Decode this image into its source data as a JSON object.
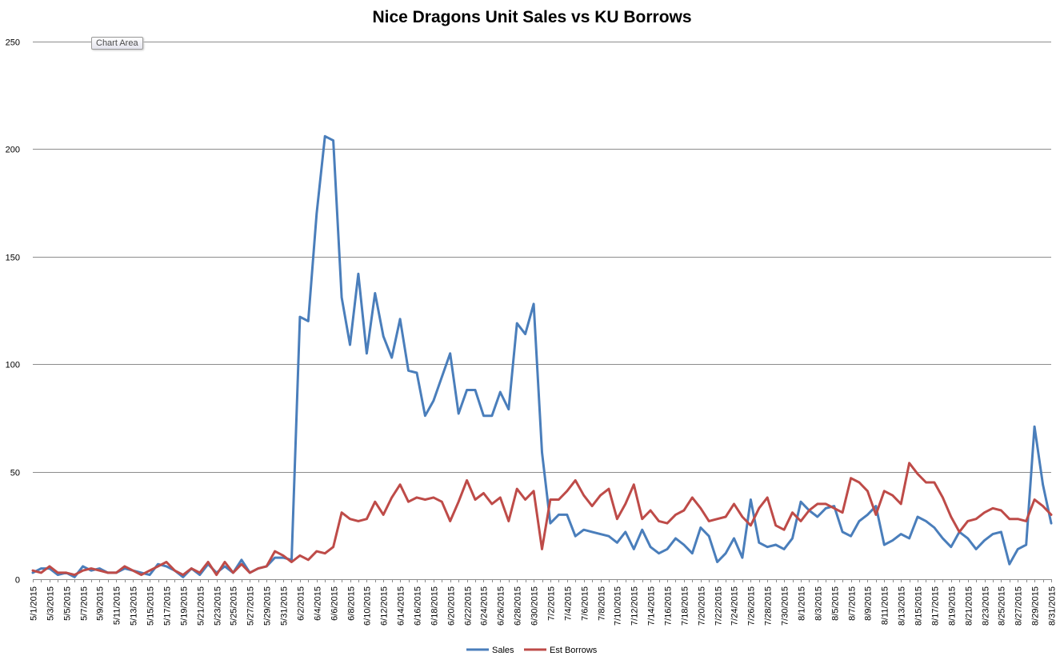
{
  "chart_data": {
    "type": "line",
    "title": "Nice Dragons Unit Sales vs KU Borrows",
    "tooltip": "Chart Area",
    "ylim": [
      0,
      250
    ],
    "yticks": [
      0,
      50,
      100,
      150,
      200,
      250
    ],
    "grid": true,
    "legend_position": "bottom",
    "xlabel": "",
    "ylabel": "",
    "x": [
      "5/1/2015",
      "5/2/2015",
      "5/3/2015",
      "5/4/2015",
      "5/5/2015",
      "5/6/2015",
      "5/7/2015",
      "5/8/2015",
      "5/9/2015",
      "5/10/2015",
      "5/11/2015",
      "5/12/2015",
      "5/13/2015",
      "5/14/2015",
      "5/15/2015",
      "5/16/2015",
      "5/17/2015",
      "5/18/2015",
      "5/19/2015",
      "5/20/2015",
      "5/21/2015",
      "5/22/2015",
      "5/23/2015",
      "5/24/2015",
      "5/25/2015",
      "5/26/2015",
      "5/27/2015",
      "5/28/2015",
      "5/29/2015",
      "5/30/2015",
      "5/31/2015",
      "6/1/2015",
      "6/2/2015",
      "6/3/2015",
      "6/4/2015",
      "6/5/2015",
      "6/6/2015",
      "6/7/2015",
      "6/8/2015",
      "6/9/2015",
      "6/10/2015",
      "6/11/2015",
      "6/12/2015",
      "6/13/2015",
      "6/14/2015",
      "6/15/2015",
      "6/16/2015",
      "6/17/2015",
      "6/18/2015",
      "6/19/2015",
      "6/20/2015",
      "6/21/2015",
      "6/22/2015",
      "6/23/2015",
      "6/24/2015",
      "6/25/2015",
      "6/26/2015",
      "6/27/2015",
      "6/28/2015",
      "6/29/2015",
      "6/30/2015",
      "7/1/2015",
      "7/2/2015",
      "7/3/2015",
      "7/4/2015",
      "7/5/2015",
      "7/6/2015",
      "7/7/2015",
      "7/8/2015",
      "7/9/2015",
      "7/10/2015",
      "7/11/2015",
      "7/12/2015",
      "7/13/2015",
      "7/14/2015",
      "7/15/2015",
      "7/16/2015",
      "7/17/2015",
      "7/18/2015",
      "7/19/2015",
      "7/20/2015",
      "7/21/2015",
      "7/22/2015",
      "7/23/2015",
      "7/24/2015",
      "7/25/2015",
      "7/26/2015",
      "7/27/2015",
      "7/28/2015",
      "7/29/2015",
      "7/30/2015",
      "7/31/2015",
      "8/1/2015",
      "8/2/2015",
      "8/3/2015",
      "8/4/2015",
      "8/5/2015",
      "8/6/2015",
      "8/7/2015",
      "8/8/2015",
      "8/9/2015",
      "8/10/2015",
      "8/11/2015",
      "8/12/2015",
      "8/13/2015",
      "8/14/2015",
      "8/15/2015",
      "8/16/2015",
      "8/17/2015",
      "8/18/2015",
      "8/19/2015",
      "8/20/2015",
      "8/21/2015",
      "8/22/2015",
      "8/23/2015",
      "8/24/2015",
      "8/25/2015",
      "8/26/2015",
      "8/27/2015",
      "8/28/2015",
      "8/29/2015",
      "8/30/2015",
      "8/31/2015"
    ],
    "series": [
      {
        "name": "Sales",
        "color": "#4a7ebb",
        "values": [
          3,
          5,
          5,
          2,
          3,
          1,
          6,
          4,
          5,
          3,
          3,
          5,
          4,
          3,
          2,
          7,
          6,
          4,
          1,
          5,
          2,
          7,
          3,
          6,
          3,
          9,
          3,
          5,
          6,
          10,
          10,
          9,
          122,
          120,
          170,
          206,
          204,
          131,
          109,
          142,
          105,
          133,
          113,
          103,
          121,
          97,
          96,
          76,
          83,
          94,
          105,
          77,
          88,
          88,
          76,
          76,
          87,
          79,
          119,
          114,
          128,
          59,
          26,
          30,
          30,
          20,
          23,
          22,
          21,
          20,
          17,
          22,
          14,
          23,
          15,
          12,
          14,
          19,
          16,
          12,
          24,
          20,
          8,
          12,
          19,
          10,
          37,
          17,
          15,
          16,
          14,
          19,
          36,
          32,
          29,
          33,
          34,
          22,
          20,
          27,
          30,
          34,
          16,
          18,
          21,
          19,
          29,
          27,
          24,
          19,
          15,
          22,
          19,
          14,
          18,
          21,
          22,
          7,
          14,
          16,
          71,
          44,
          26
        ]
      },
      {
        "name": "Est Borrows",
        "color": "#be4b48",
        "values": [
          4,
          3,
          6,
          3,
          3,
          2,
          4,
          5,
          4,
          3,
          3,
          6,
          4,
          2,
          4,
          6,
          8,
          4,
          2,
          5,
          3,
          8,
          2,
          8,
          3,
          7,
          3,
          5,
          6,
          13,
          11,
          8,
          11,
          9,
          13,
          12,
          15,
          31,
          28,
          27,
          28,
          36,
          30,
          38,
          44,
          36,
          38,
          37,
          38,
          36,
          27,
          36,
          46,
          37,
          40,
          35,
          38,
          27,
          42,
          37,
          41,
          14,
          37,
          37,
          41,
          46,
          39,
          34,
          39,
          42,
          28,
          35,
          44,
          28,
          32,
          27,
          26,
          30,
          32,
          38,
          33,
          27,
          28,
          29,
          35,
          29,
          25,
          33,
          38,
          25,
          23,
          31,
          27,
          32,
          35,
          35,
          33,
          31,
          47,
          45,
          41,
          30,
          41,
          39,
          35,
          54,
          49,
          45,
          45,
          38,
          29,
          22,
          27,
          28,
          31,
          33,
          32,
          28,
          28,
          27,
          37,
          34,
          30
        ]
      }
    ]
  }
}
